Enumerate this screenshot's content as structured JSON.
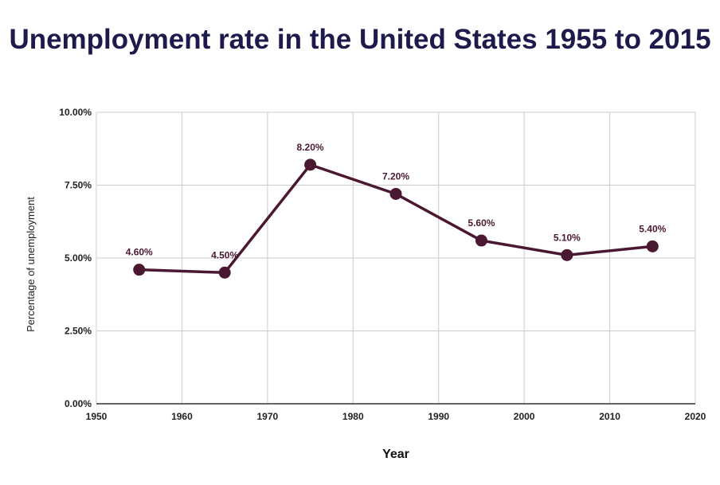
{
  "chart_data": {
    "type": "line",
    "title": "Unemployment rate in the United States 1955 to 2015",
    "xlabel": "Year",
    "ylabel": "Percentage of unemployment",
    "xlim": [
      1950,
      2020
    ],
    "ylim": [
      0,
      10
    ],
    "x_ticks": [
      "1950",
      "1960",
      "1970",
      "1980",
      "1990",
      "2000",
      "2010",
      "2020"
    ],
    "y_ticks": [
      "0.00%",
      "2.50%",
      "5.00%",
      "7.50%",
      "10.00%"
    ],
    "grid": true,
    "legend": "none",
    "series": [
      {
        "name": "Unemployment rate",
        "color": "#4b1832",
        "x": [
          1955,
          1965,
          1975,
          1985,
          1995,
          2005,
          2015
        ],
        "values": [
          4.6,
          4.5,
          8.2,
          7.2,
          5.6,
          5.1,
          5.4
        ],
        "labels": [
          "4.60%",
          "4.50%",
          "8.20%",
          "7.20%",
          "5.60%",
          "5.10%",
          "5.40%"
        ]
      }
    ]
  }
}
